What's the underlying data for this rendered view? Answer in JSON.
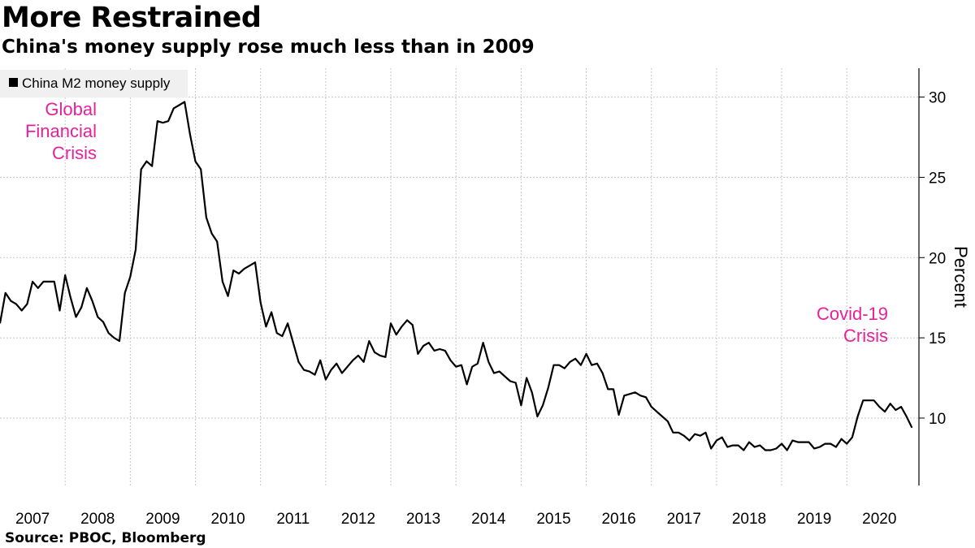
{
  "title": "More Restrained",
  "subtitle": "China's money supply rose much less than in 2009",
  "source": "Source: PBOC, Bloomberg",
  "colors": {
    "line": "#000000",
    "annotation": "#e5229a",
    "grid": "#c8c8c8",
    "legend_bg": "#f0f0f0"
  },
  "chart_data": {
    "type": "line",
    "title": "More Restrained",
    "subtitle": "China's money supply rose much less than in 2009",
    "xlabel": "",
    "ylabel": "Percent",
    "ylim": [
      5.8,
      31.8
    ],
    "yticks": [
      10,
      15,
      20,
      25,
      30
    ],
    "xlim": [
      2007.0,
      2020.92
    ],
    "x_tick_labels": [
      "2007",
      "2008",
      "2009",
      "2010",
      "2011",
      "2012",
      "2013",
      "2014",
      "2015",
      "2016",
      "2017",
      "2018",
      "2019",
      "2020"
    ],
    "legend": {
      "position": "top-left",
      "entries": [
        "China M2 money supply"
      ]
    },
    "grid": true,
    "annotations": [
      {
        "lines": [
          "Global",
          "Financial",
          "Crisis"
        ],
        "near": "2009 peak",
        "align": "right"
      },
      {
        "lines": [
          "Covid-19",
          "Crisis"
        ],
        "near": "2020 rise",
        "align": "right"
      }
    ],
    "series": [
      {
        "name": "China M2 money supply",
        "start": 2007.0,
        "step_months": 1,
        "values": [
          15.9,
          17.8,
          17.3,
          17.1,
          16.7,
          17.1,
          18.5,
          18.1,
          18.5,
          18.5,
          18.5,
          16.7,
          18.9,
          17.5,
          16.3,
          16.9,
          18.1,
          17.3,
          16.3,
          16.0,
          15.3,
          15.0,
          14.8,
          17.8,
          18.8,
          20.5,
          25.5,
          26.0,
          25.7,
          28.5,
          28.4,
          28.5,
          29.3,
          29.5,
          29.7,
          27.7,
          26.0,
          25.5,
          22.5,
          21.5,
          21.0,
          18.5,
          17.6,
          19.2,
          19.0,
          19.3,
          19.5,
          19.7,
          17.2,
          15.7,
          16.6,
          15.3,
          15.1,
          15.9,
          14.7,
          13.5,
          13.0,
          12.9,
          12.7,
          13.6,
          12.4,
          13.0,
          13.4,
          12.8,
          13.2,
          13.6,
          13.9,
          13.5,
          14.8,
          14.1,
          13.9,
          13.8,
          15.9,
          15.2,
          15.7,
          16.1,
          15.8,
          14.0,
          14.5,
          14.7,
          14.2,
          14.3,
          14.2,
          13.6,
          13.2,
          13.3,
          12.1,
          13.2,
          13.4,
          14.7,
          13.5,
          12.8,
          12.9,
          12.6,
          12.3,
          12.2,
          10.8,
          12.5,
          11.6,
          10.1,
          10.8,
          11.9,
          13.3,
          13.3,
          13.1,
          13.5,
          13.7,
          13.3,
          14.0,
          13.3,
          13.4,
          12.8,
          11.8,
          11.8,
          10.2,
          11.4,
          11.5,
          11.6,
          11.4,
          11.3,
          10.7,
          10.4,
          10.1,
          9.8,
          9.1,
          9.1,
          8.9,
          8.6,
          9.0,
          8.9,
          9.1,
          8.1,
          8.6,
          8.8,
          8.2,
          8.3,
          8.3,
          8.0,
          8.5,
          8.2,
          8.3,
          8.0,
          8.0,
          8.1,
          8.4,
          8.0,
          8.6,
          8.5,
          8.5,
          8.5,
          8.1,
          8.2,
          8.4,
          8.4,
          8.2,
          8.7,
          8.4,
          8.8,
          10.1,
          11.1,
          11.1,
          11.1,
          10.7,
          10.4,
          10.9,
          10.5,
          10.7,
          10.1,
          9.4
        ]
      }
    ]
  }
}
